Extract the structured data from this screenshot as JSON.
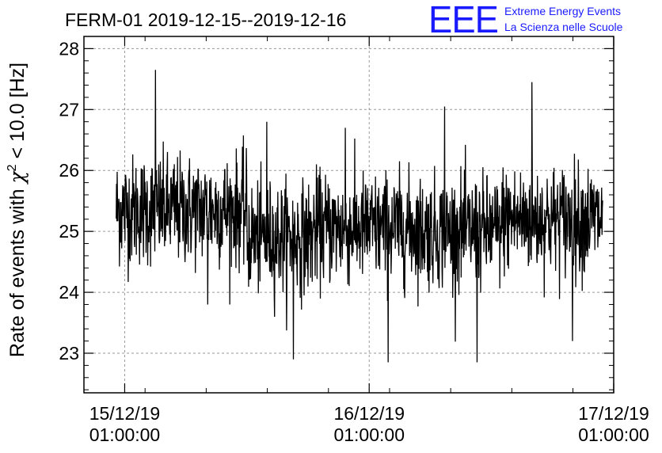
{
  "chart_data": {
    "type": "line",
    "title": "FERM-01 2019-12-15--2019-12-16",
    "ylabel": {
      "prefix": "Rate of events with ",
      "symbol": "χ",
      "superscript": "2",
      "suffix": " < 10.0 [Hz]"
    },
    "xlabel": "",
    "ylim": [
      22.35,
      28.2
    ],
    "yticks": [
      23,
      24,
      25,
      26,
      27,
      28
    ],
    "ytick_labels": [
      "23",
      "24",
      "25",
      "26",
      "27",
      "28"
    ],
    "xlim": [
      "2019-12-14T21:00:00",
      "2019-12-17T01:00:00"
    ],
    "xticks": [
      {
        "x": "2019-12-15T01:00:00",
        "date": "15/12/19",
        "time": "01:00:00"
      },
      {
        "x": "2019-12-16T01:00:00",
        "date": "16/12/19",
        "time": "01:00:00"
      },
      {
        "x": "2019-12-17T01:00:00",
        "date": "17/12/19",
        "time": "01:00:00"
      }
    ],
    "grid": true,
    "series": [
      {
        "color": "#000000",
        "x_start": "2019-12-15T00:10:00",
        "x_end": "2019-12-16T23:55:00",
        "segments": [
          {
            "from": "2019-12-15T00:10:00",
            "to": "2019-12-15T13:00:00",
            "mean": 25.35,
            "sd": 0.45,
            "max": 27.65,
            "min": 23.8
          },
          {
            "from": "2019-12-15T13:00:00",
            "to": "2019-12-15T19:30:00",
            "mean": 24.9,
            "sd": 0.45,
            "max": 26.8,
            "min": 22.9
          },
          {
            "from": "2019-12-15T19:30:00",
            "to": "2019-12-16T06:00:00",
            "mean": 25.05,
            "sd": 0.45,
            "max": 26.7,
            "min": 22.85
          },
          {
            "from": "2019-12-16T06:00:00",
            "to": "2019-12-16T14:00:00",
            "mean": 25.0,
            "sd": 0.45,
            "max": 27.05,
            "min": 22.85
          },
          {
            "from": "2019-12-16T14:00:00",
            "to": "2019-12-16T23:55:00",
            "mean": 25.2,
            "sd": 0.45,
            "max": 27.45,
            "min": 23.2
          }
        ]
      }
    ]
  },
  "logo": {
    "mark": "EEE",
    "line1": "Extreme Energy Events",
    "line2": "La Scienza nelle Scuole",
    "color": "#1a1aff"
  }
}
